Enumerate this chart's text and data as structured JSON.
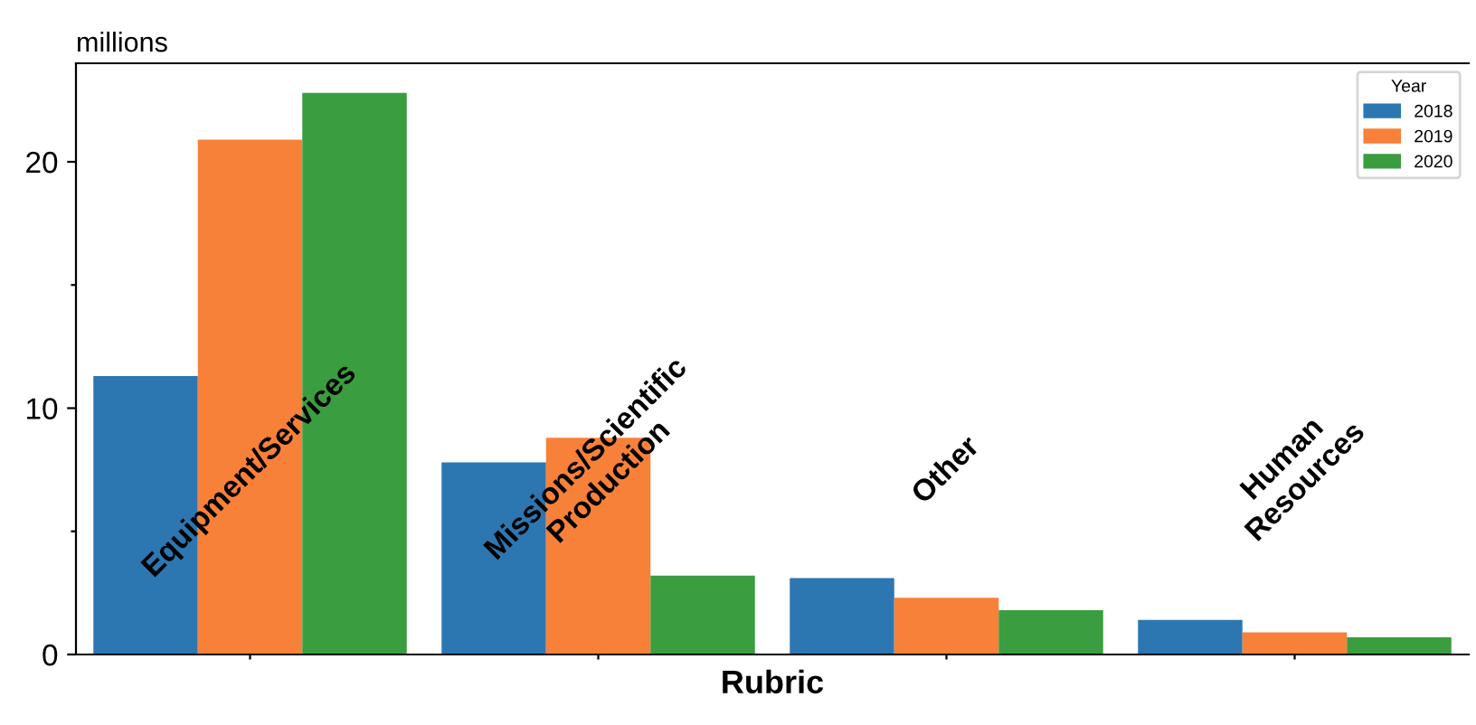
{
  "chart_data": {
    "type": "bar",
    "ylabel": "millions",
    "xlabel": "Rubric",
    "categories": [
      "Equipment/Services",
      "Missions/Scientific\nProduction",
      "Other",
      "Human\nResources"
    ],
    "series": [
      {
        "name": "2018",
        "color": "#2c77b1",
        "values": [
          11.3,
          7.8,
          3.1,
          1.4
        ]
      },
      {
        "name": "2019",
        "color": "#f8813a",
        "values": [
          20.9,
          8.8,
          2.3,
          0.9
        ]
      },
      {
        "name": "2020",
        "color": "#3a9d3f",
        "values": [
          22.8,
          3.2,
          1.8,
          0.7
        ]
      }
    ],
    "legend_title": "Year",
    "legend": "top right",
    "ylim": [
      0,
      24
    ],
    "yticks": [
      0,
      {
        "value": 5,
        "label": null
      },
      10,
      {
        "value": 15,
        "label": null
      },
      20
    ],
    "grid": false
  }
}
